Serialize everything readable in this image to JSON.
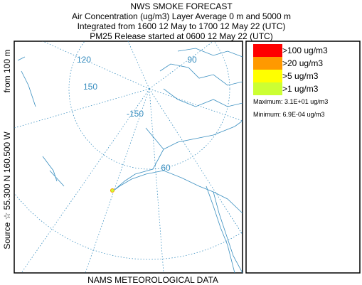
{
  "header": {
    "title": "NWS SMOKE FORECAST",
    "lines": [
      "Air Concentration (ug/m3) Layer Average    0 m and  5000 m",
      "Integrated from 1600 12 May to 1700 12 May 22 (UTC)",
      "PM25 Release started at 0600 12 May 22 (UTC)"
    ]
  },
  "side_label": {
    "source": "Source ☆  55.300  N 160.500  W",
    "height": "from  100 m"
  },
  "map": {
    "labels": [
      "120",
      "150",
      "90",
      "-150",
      "60"
    ]
  },
  "legend": {
    "items": [
      {
        "label": ">100 ug/m3",
        "color": "#ff0000"
      },
      {
        "label": ">20 ug/m3",
        "color": "#ff9900"
      },
      {
        "label": ">5 ug/m3",
        "color": "#ffff00"
      },
      {
        "label": ">1 ug/m3",
        "color": "#ccff33"
      }
    ],
    "maximum": "Maximum: 3.1E+01 ug/m3",
    "minimum": "Minimum: 6.9E-04 ug/m3"
  },
  "footer": "NAMS METEOROLOGICAL DATA"
}
